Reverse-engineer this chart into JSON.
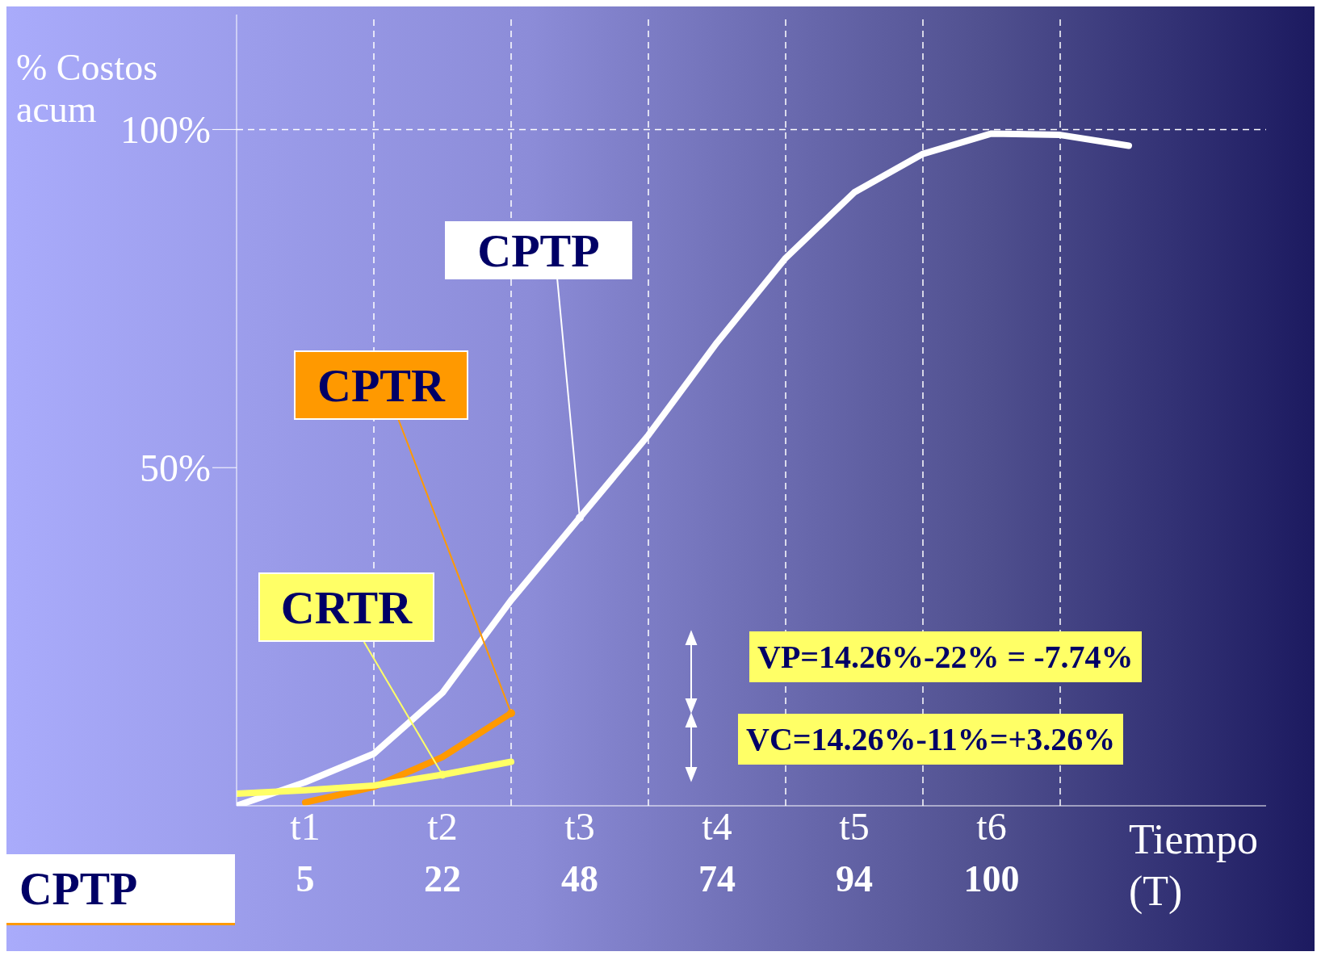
{
  "chart_data": {
    "type": "line",
    "ylabel": "% Costos acum",
    "xlabel": "Tiempo (T)",
    "categories": [
      null,
      "t1",
      null,
      "t2",
      null,
      "t3",
      null,
      "t4",
      null,
      "t5",
      null,
      "t6",
      null,
      null,
      null,
      null
    ],
    "ylim": [
      0,
      117
    ],
    "yticks": [
      {
        "value": 50,
        "label": "50%"
      },
      {
        "value": 100,
        "label": "100%"
      }
    ],
    "grid": "x",
    "marker": "none",
    "line_style": "solid",
    "series": [
      {
        "name": "CPTP",
        "color": "#ffffff",
        "values": [
          0,
          3.5,
          7.7,
          16.7,
          30.4,
          42.6,
          54.8,
          68.5,
          81,
          90.7,
          96.4,
          99.4,
          99.2,
          97.6,
          null,
          null
        ]
      },
      {
        "name": "CPTR",
        "color": "#ff9900",
        "values": [
          null,
          0.5,
          2.8,
          7.2,
          13.7,
          null,
          null,
          null,
          null,
          null,
          null,
          null,
          null,
          null,
          null,
          null
        ]
      },
      {
        "name": "CRTR",
        "color": "#ffff66",
        "values": [
          1.8,
          2.3,
          3,
          4.6,
          6.5,
          null,
          null,
          null,
          null,
          null,
          null,
          null,
          null,
          null,
          null,
          null
        ]
      }
    ],
    "ref_lines": [
      {
        "axis": "y",
        "value": 100,
        "color": "#ffffff",
        "line_style": "dashed"
      }
    ],
    "annotations": [
      "VP=14.26%-22% = -7.74%",
      "VC=14.26%-11%=+3.26%",
      "CPTP",
      "5",
      "22",
      "48",
      "74",
      "94",
      "100"
    ]
  }
}
